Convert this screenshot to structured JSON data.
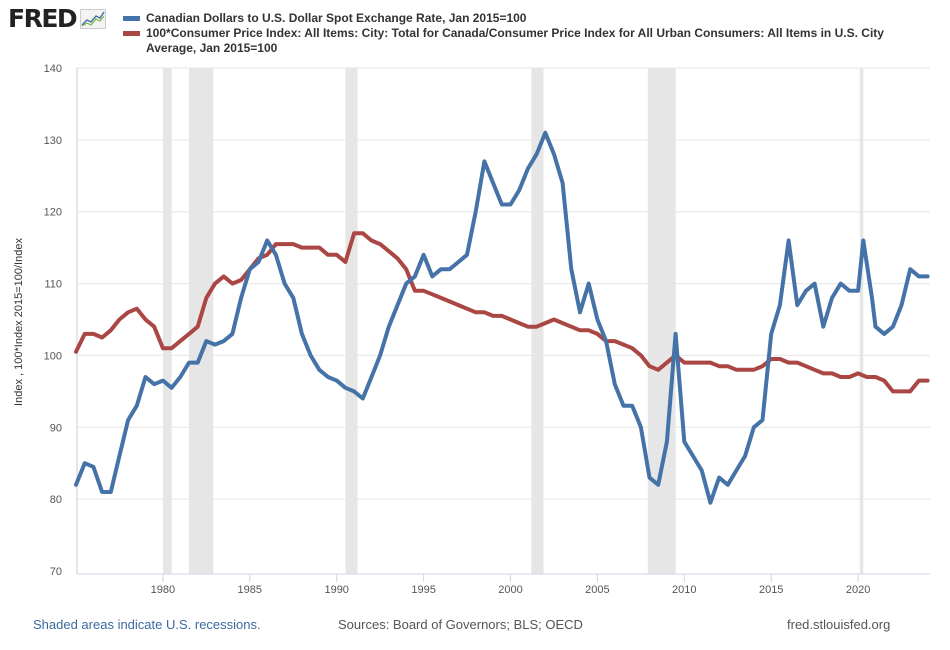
{
  "header": {
    "logo_text": "FRED",
    "logo_icon": "sparkline-chart-icon"
  },
  "footer": {
    "recession_note": "Shaded areas indicate U.S. recessions.",
    "sources": "Sources: Board of Governors; BLS; OECD",
    "site": "fred.stlouisfed.org"
  },
  "colors": {
    "series_blue": "#4572a7",
    "series_red": "#aa4643",
    "recession": "#e6e6e6",
    "grid": "#e6e6e6",
    "axis": "#ccd6eb"
  },
  "chart_data": {
    "type": "line",
    "title": "",
    "xlabel": "",
    "ylabel": "Index , 100*Index 2015=100/Index",
    "xlim": [
      1975.0,
      2024.2
    ],
    "ylim": [
      70,
      140
    ],
    "y_ticks": [
      70,
      80,
      90,
      100,
      110,
      120,
      130,
      140
    ],
    "x_ticks": [
      1980,
      1985,
      1990,
      1995,
      2000,
      2005,
      2010,
      2015,
      2020
    ],
    "grid": true,
    "legend_position": "top",
    "recessions": [
      [
        1980.0,
        1980.5
      ],
      [
        1981.5,
        1982.9
      ],
      [
        1990.5,
        1991.2
      ],
      [
        2001.2,
        2001.9
      ],
      [
        2007.9,
        2009.5
      ],
      [
        2020.1,
        2020.3
      ]
    ],
    "series": [
      {
        "name": "Canadian Dollars to U.S. Dollar Spot Exchange Rate, Jan 2015=100",
        "color": "#4572a7",
        "x": [
          1975.0,
          1975.5,
          1976.0,
          1976.5,
          1977.0,
          1977.5,
          1978.0,
          1978.5,
          1979.0,
          1979.5,
          1980.0,
          1980.5,
          1981.0,
          1981.5,
          1982.0,
          1982.5,
          1983.0,
          1983.5,
          1984.0,
          1984.5,
          1985.0,
          1985.5,
          1986.0,
          1986.5,
          1987.0,
          1987.5,
          1988.0,
          1988.5,
          1989.0,
          1989.5,
          1990.0,
          1990.5,
          1991.0,
          1991.5,
          1992.0,
          1992.5,
          1993.0,
          1993.5,
          1994.0,
          1994.5,
          1995.0,
          1995.5,
          1996.0,
          1996.5,
          1997.0,
          1997.5,
          1998.0,
          1998.5,
          1999.0,
          1999.5,
          2000.0,
          2000.5,
          2001.0,
          2001.5,
          2002.0,
          2002.5,
          2003.0,
          2003.5,
          2004.0,
          2004.5,
          2005.0,
          2005.5,
          2006.0,
          2006.5,
          2007.0,
          2007.5,
          2008.0,
          2008.5,
          2009.0,
          2009.5,
          2010.0,
          2010.5,
          2011.0,
          2011.5,
          2012.0,
          2012.5,
          2013.0,
          2013.5,
          2014.0,
          2014.5,
          2015.0,
          2015.5,
          2016.0,
          2016.5,
          2017.0,
          2017.5,
          2018.0,
          2018.5,
          2019.0,
          2019.5,
          2020.0,
          2020.3,
          2020.8,
          2021.0,
          2021.5,
          2022.0,
          2022.5,
          2023.0,
          2023.5,
          2024.0
        ],
        "values": [
          82,
          85,
          84.5,
          81,
          81,
          86,
          91,
          93,
          97,
          96,
          96.5,
          95.5,
          97,
          99,
          99,
          102,
          101.5,
          102,
          103,
          108,
          112,
          113,
          116,
          114,
          110,
          108,
          103,
          100,
          98,
          97,
          96.5,
          95.5,
          95,
          94,
          97,
          100,
          104,
          107,
          110,
          111,
          114,
          111,
          112,
          112,
          113,
          114,
          120,
          127,
          124,
          121,
          121,
          123,
          126,
          128,
          131,
          128,
          124,
          112,
          106,
          110,
          105,
          102,
          96,
          93,
          93,
          90,
          83,
          82,
          88,
          103,
          88,
          86,
          84,
          79.5,
          83,
          82,
          84,
          86,
          90,
          91,
          103,
          107,
          116,
          107,
          109,
          110,
          104,
          108,
          110,
          109,
          109,
          116,
          108,
          104,
          103,
          104,
          107,
          112,
          111,
          111
        ]
      },
      {
        "name": "100*Consumer Price Index: All Items: City: Total for Canada/Consumer Price Index for All Urban Consumers: All Items in U.S. City Average, Jan 2015=100",
        "color": "#aa4643",
        "x": [
          1975.0,
          1975.5,
          1976.0,
          1976.5,
          1977.0,
          1977.5,
          1978.0,
          1978.5,
          1979.0,
          1979.5,
          1980.0,
          1980.5,
          1981.0,
          1981.5,
          1982.0,
          1982.5,
          1983.0,
          1983.5,
          1984.0,
          1984.5,
          1985.0,
          1985.5,
          1986.0,
          1986.5,
          1987.0,
          1987.5,
          1988.0,
          1988.5,
          1989.0,
          1989.5,
          1990.0,
          1990.5,
          1991.0,
          1991.5,
          1992.0,
          1992.5,
          1993.0,
          1993.5,
          1994.0,
          1994.5,
          1995.0,
          1995.5,
          1996.0,
          1996.5,
          1997.0,
          1997.5,
          1998.0,
          1998.5,
          1999.0,
          1999.5,
          2000.0,
          2000.5,
          2001.0,
          2001.5,
          2002.0,
          2002.5,
          2003.0,
          2003.5,
          2004.0,
          2004.5,
          2005.0,
          2005.5,
          2006.0,
          2006.5,
          2007.0,
          2007.5,
          2008.0,
          2008.5,
          2009.0,
          2009.5,
          2010.0,
          2010.5,
          2011.0,
          2011.5,
          2012.0,
          2012.5,
          2013.0,
          2013.5,
          2014.0,
          2014.5,
          2015.0,
          2015.5,
          2016.0,
          2016.5,
          2017.0,
          2017.5,
          2018.0,
          2018.5,
          2019.0,
          2019.5,
          2020.0,
          2020.5,
          2021.0,
          2021.5,
          2022.0,
          2022.5,
          2023.0,
          2023.5,
          2024.0
        ],
        "values": [
          100.5,
          103,
          103,
          102.5,
          103.5,
          105,
          106,
          106.5,
          105,
          104,
          101,
          101,
          102,
          103,
          104,
          108,
          110,
          111,
          110,
          110.5,
          112,
          113.5,
          114,
          115.5,
          115.5,
          115.5,
          115,
          115,
          115,
          114,
          114,
          113,
          117,
          117,
          116,
          115.5,
          114.5,
          113.5,
          112,
          109,
          109,
          108.5,
          108,
          107.5,
          107,
          106.5,
          106,
          106,
          105.5,
          105.5,
          105,
          104.5,
          104,
          104,
          104.5,
          105,
          104.5,
          104,
          103.5,
          103.5,
          103,
          102,
          102,
          101.5,
          101,
          100,
          98.5,
          98,
          99,
          100,
          99,
          99,
          99,
          99,
          98.5,
          98.5,
          98,
          98,
          98,
          98.5,
          99.5,
          99.5,
          99,
          99,
          98.5,
          98,
          97.5,
          97.5,
          97,
          97,
          97.5,
          97,
          97,
          96.5,
          95,
          95,
          95,
          96.5,
          96.5
        ]
      }
    ]
  }
}
